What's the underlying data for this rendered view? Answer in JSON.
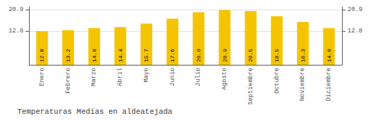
{
  "chart_data": {
    "type": "bar",
    "title": "Temperaturas Medias en aldeatejada",
    "categories": [
      "Enero",
      "Febrero",
      "Marzo",
      "Abril",
      "Mayo",
      "Junio",
      "Julio",
      "Agosto",
      "Septiembre",
      "Octubre",
      "Noviembre",
      "Diciembre"
    ],
    "values": [
      12.8,
      13.2,
      14.0,
      14.4,
      15.7,
      17.6,
      20.0,
      20.9,
      20.5,
      18.5,
      16.3,
      14.0
    ],
    "value_labels": [
      "12.8",
      "13.2",
      "14.0",
      "14.4",
      "15.7",
      "17.6",
      "20.0",
      "20.9",
      "20.5",
      "18.5",
      "16.3",
      "14.0"
    ],
    "color": "#F5C400",
    "ylim": [
      0,
      22.0495
    ],
    "yticks": [
      12.8,
      20.9
    ],
    "y2lim": [
      0,
      22.0495
    ],
    "y2ticks": [
      12.8,
      20.9
    ],
    "grid": true,
    "data_labels": true
  }
}
